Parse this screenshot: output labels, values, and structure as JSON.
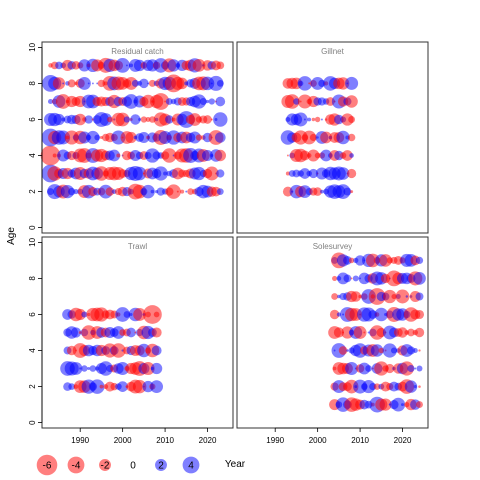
{
  "colors": {
    "negative": "#ff0000",
    "positive": "#0000ff",
    "frame": "#333333",
    "title": "#808080"
  },
  "labels": {
    "y_axis": "Age",
    "x_axis": "Year"
  },
  "chart_data": {
    "type": "scatter",
    "subtype": "bubble-residuals",
    "x_ticks": [
      1990,
      2000,
      2010,
      2020
    ],
    "y_ticks": [
      0,
      2,
      4,
      6,
      8,
      10
    ],
    "xlim": [
      1981,
      2026
    ],
    "ylim": [
      -0.3,
      10.3
    ],
    "legend": {
      "position": "bottom-left",
      "values": [
        -6,
        -4,
        -2,
        0,
        2,
        4
      ],
      "labels": [
        "-6",
        "-4",
        "-2",
        "0",
        "2",
        "4"
      ]
    },
    "panels": [
      {
        "title": "Residual catch",
        "years": [
          1983,
          2023
        ],
        "ages": [
          2,
          9
        ],
        "highlights": [
          {
            "year": 1983,
            "age": 4,
            "value": -5.5
          },
          {
            "year": 1983,
            "age": 5,
            "value": 4.5
          },
          {
            "year": 1983,
            "age": 3,
            "value": 4.5
          },
          {
            "year": 1983,
            "age": 8,
            "value": 4.0
          },
          {
            "year": 2012,
            "age": 8,
            "value": -4.5
          },
          {
            "year": 2003,
            "age": 2,
            "value": -3.5
          },
          {
            "year": 2009,
            "age": 7,
            "value": -4.0
          },
          {
            "year": 2015,
            "age": 6,
            "value": 4.0
          }
        ]
      },
      {
        "title": "Gillnet",
        "years": [
          1993,
          2008
        ],
        "ages": [
          2,
          8
        ],
        "highlights": [
          {
            "year": 1997,
            "age": 8,
            "value": 3.0
          },
          {
            "year": 2004,
            "age": 2,
            "value": 3.0
          },
          {
            "year": 1994,
            "age": 7,
            "value": -3.0
          }
        ]
      },
      {
        "title": "Trawl",
        "years": [
          1987,
          2008
        ],
        "ages": [
          2,
          6
        ],
        "highlights": [
          {
            "year": 2007,
            "age": 6,
            "value": -5.0
          },
          {
            "year": 1994,
            "age": 2,
            "value": 3.0
          },
          {
            "year": 1999,
            "age": 4,
            "value": -3.0
          }
        ]
      },
      {
        "title": "Solesurvey",
        "years": [
          2004,
          2024
        ],
        "ages": [
          1,
          9
        ],
        "highlights": [
          {
            "year": 2005,
            "age": 9,
            "value": -3.5
          },
          {
            "year": 2014,
            "age": 7,
            "value": -4.0
          },
          {
            "year": 2018,
            "age": 8,
            "value": -3.5
          },
          {
            "year": 2014,
            "age": 1,
            "value": 3.5
          },
          {
            "year": 2008,
            "age": 1,
            "value": -3.0
          }
        ]
      }
    ]
  }
}
